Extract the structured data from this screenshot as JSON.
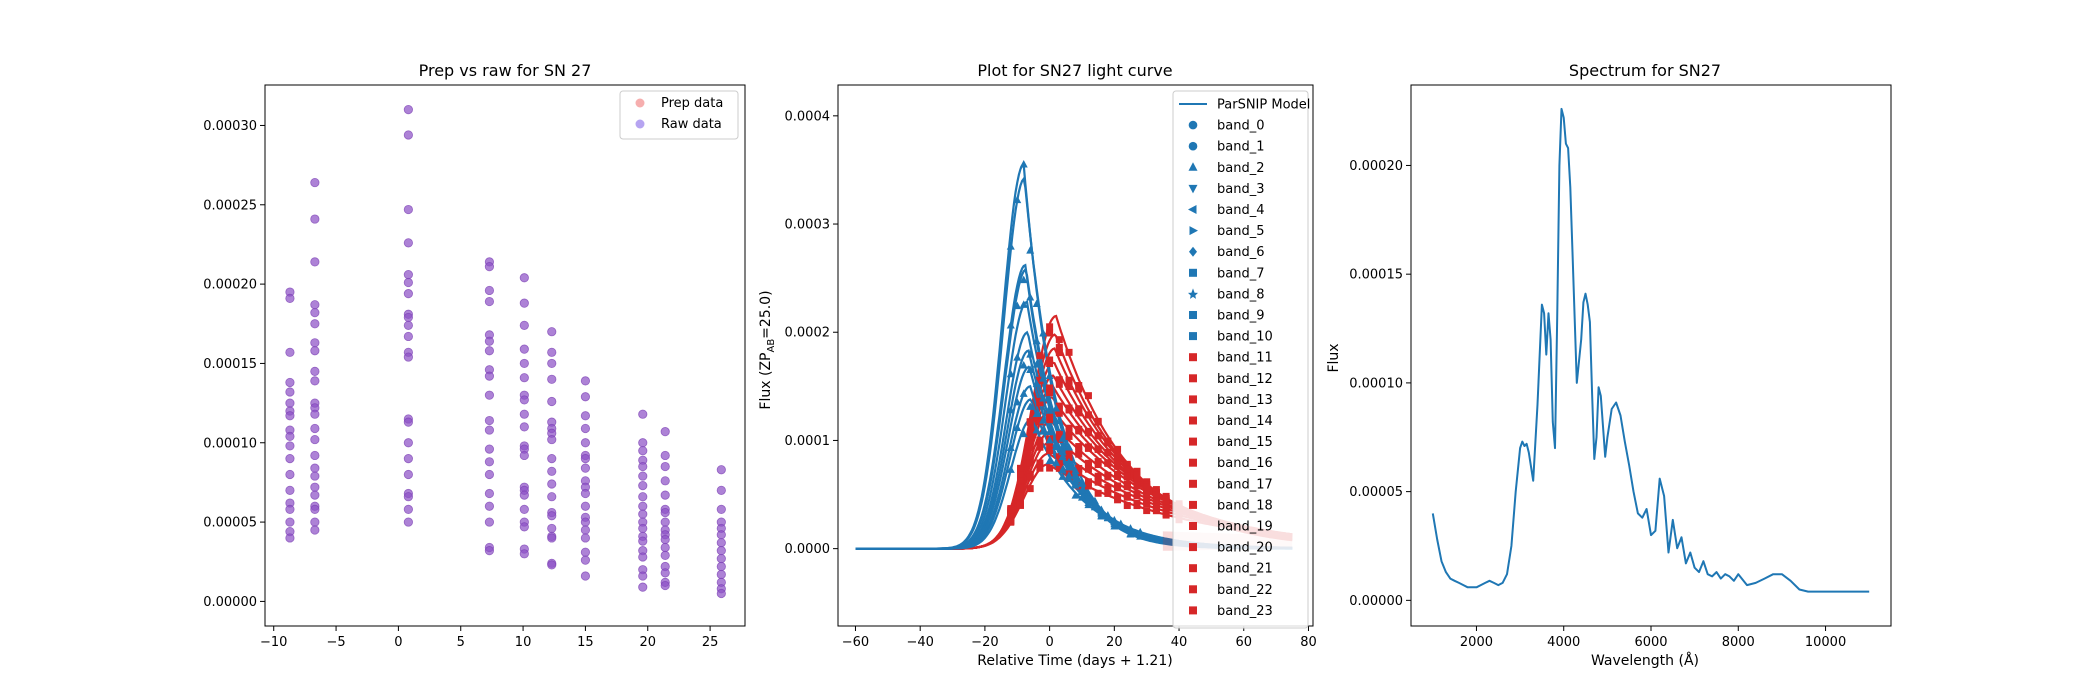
{
  "colors": {
    "red": "#d62728",
    "blue": "#1f77b4",
    "prep": "#f28c8c",
    "raw": "#7a5ae6",
    "overlap": "#8e52c6"
  },
  "chart_data": [
    {
      "type": "scatter",
      "title": "Prep vs raw for SN 27",
      "xlabel": "",
      "ylabel": "",
      "xlim": [
        -10.7,
        27.8
      ],
      "ylim": [
        -1.55e-05,
        0.0003255
      ],
      "xticks": [
        "−10",
        "−5",
        "0",
        "5",
        "10",
        "15",
        "20",
        "25"
      ],
      "xtick_values": [
        -10,
        -5,
        0,
        5,
        10,
        15,
        20,
        25
      ],
      "yticks": [
        "0.00000",
        "0.00005",
        "0.00010",
        "0.00015",
        "0.00020",
        "0.00025",
        "0.00030"
      ],
      "ytick_values": [
        0,
        5e-05,
        0.0001,
        0.00015,
        0.0002,
        0.00025,
        0.0003
      ],
      "legend": [
        "Prep data",
        "Raw data"
      ],
      "legend_position": "top-right",
      "columns": [
        {
          "x": -8.7,
          "y": [
            0.000195,
            0.000191,
            0.000157,
            0.000138,
            0.000132,
            0.000125,
            0.00012,
            0.000117,
            0.000108,
            0.000104,
            9.8e-05,
            9e-05,
            8e-05,
            7e-05,
            6.2e-05,
            5.8e-05,
            5e-05,
            4.4e-05,
            4e-05
          ]
        },
        {
          "x": -6.7,
          "y": [
            0.000264,
            0.000241,
            0.000214,
            0.000187,
            0.000182,
            0.000175,
            0.000163,
            0.000158,
            0.000145,
            0.000139,
            0.000125,
            0.000122,
            0.000118,
            0.000109,
            0.000102,
            9.2e-05,
            8.4e-05,
            7.9e-05,
            7.2e-05,
            6.7e-05,
            6e-05,
            5.8e-05,
            5e-05,
            4.5e-05
          ]
        },
        {
          "x": 0.8,
          "y": [
            0.00031,
            0.000294,
            0.000247,
            0.000226,
            0.000206,
            0.000201,
            0.000194,
            0.000181,
            0.000179,
            0.000174,
            0.000167,
            0.000157,
            0.000154,
            0.000115,
            0.000113,
            0.0001,
            9e-05,
            8e-05,
            6.8e-05,
            6.6e-05,
            5.8e-05,
            5e-05
          ]
        },
        {
          "x": 7.3,
          "y": [
            0.000214,
            0.000211,
            0.000196,
            0.000189,
            0.000168,
            0.000164,
            0.000158,
            0.000146,
            0.000142,
            0.00013,
            0.000114,
            0.000108,
            9.6e-05,
            8.8e-05,
            8e-05,
            6.8e-05,
            6e-05,
            5e-05,
            3.4e-05,
            3.2e-05
          ]
        },
        {
          "x": 10.1,
          "y": [
            0.000204,
            0.000188,
            0.000174,
            0.000159,
            0.00015,
            0.000141,
            0.00013,
            0.000127,
            0.000118,
            0.00011,
            9.8e-05,
            9.6e-05,
            9.2e-05,
            7.2e-05,
            7e-05,
            6.7e-05,
            5.8e-05,
            5e-05,
            4.7e-05,
            3.3e-05,
            3e-05
          ]
        },
        {
          "x": 12.3,
          "y": [
            0.00017,
            0.000157,
            0.00015,
            0.00014,
            0.000126,
            0.000113,
            0.000109,
            0.000106,
            0.000102,
            9e-05,
            8.2e-05,
            7.4e-05,
            6.6e-05,
            5.6e-05,
            5.4e-05,
            4.6e-05,
            4.1e-05,
            4e-05,
            2.4e-05,
            2.3e-05
          ]
        },
        {
          "x": 15.0,
          "y": [
            0.000139,
            0.000129,
            0.000117,
            0.000109,
            0.0001,
            9.2e-05,
            9e-05,
            8.4e-05,
            7.6e-05,
            7.2e-05,
            6.8e-05,
            6e-05,
            5.3e-05,
            5e-05,
            4.5e-05,
            4e-05,
            3.1e-05,
            2.6e-05,
            1.6e-05
          ]
        },
        {
          "x": 19.6,
          "y": [
            0.000118,
            0.0001,
            9.5e-05,
            8.9e-05,
            8.5e-05,
            7.9e-05,
            7.3e-05,
            6.6e-05,
            6e-05,
            5.5e-05,
            5e-05,
            4.6e-05,
            4.1e-05,
            3.8e-05,
            3.2e-05,
            2.8e-05,
            2e-05,
            1.6e-05,
            9e-06
          ]
        },
        {
          "x": 21.4,
          "y": [
            0.000107,
            9.2e-05,
            8.5e-05,
            7.6e-05,
            6.7e-05,
            5.8e-05,
            5.6e-05,
            5e-05,
            4.5e-05,
            4.2e-05,
            3.9e-05,
            3.4e-05,
            2.9e-05,
            2.2e-05,
            1.8e-05,
            1.2e-05,
            1e-05
          ]
        },
        {
          "x": 25.9,
          "y": [
            8.3e-05,
            7e-05,
            5.8e-05,
            5e-05,
            4.6e-05,
            4.2e-05,
            3.7e-05,
            3.2e-05,
            2.7e-05,
            2.2e-05,
            1.7e-05,
            1.2e-05,
            8e-06,
            5e-06
          ]
        }
      ]
    },
    {
      "type": "line",
      "title": "Plot for SN27 light curve",
      "xlabel": "Relative Time (days + 1.21)",
      "ylabel": "Flux (ZP",
      "ylabel_sub": "AB",
      "ylabel_tail": "=25.0)",
      "xlim": [
        -65.4,
        81.4
      ],
      "ylim": [
        -7.15e-05,
        0.0004285
      ],
      "xticks": [
        "−60",
        "−40",
        "−20",
        "0",
        "20",
        "40",
        "60",
        "80"
      ],
      "xtick_values": [
        -60,
        -40,
        -20,
        0,
        20,
        40,
        60,
        80
      ],
      "yticks": [
        "0.0000",
        "0.0001",
        "0.0002",
        "0.0003",
        "0.0004"
      ],
      "ytick_values": [
        0,
        0.0001,
        0.0002,
        0.0003,
        0.0004
      ],
      "x_range": [
        -60,
        75
      ],
      "legend_position": "top-right",
      "legend": [
        {
          "label": "ParSNIP Model",
          "type": "line",
          "color": "#1f77b4"
        },
        {
          "label": "band_0",
          "marker": "hexagon",
          "color": "#1f77b4"
        },
        {
          "label": "band_1",
          "marker": "octagon",
          "color": "#1f77b4"
        },
        {
          "label": "band_2",
          "marker": "triangle-up",
          "color": "#1f77b4"
        },
        {
          "label": "band_3",
          "marker": "tri-down",
          "color": "#1f77b4"
        },
        {
          "label": "band_4",
          "marker": "tri-left",
          "color": "#1f77b4"
        },
        {
          "label": "band_5",
          "marker": "tri-right",
          "color": "#1f77b4"
        },
        {
          "label": "band_6",
          "marker": "diamond",
          "color": "#1f77b4"
        },
        {
          "label": "band_7",
          "marker": "square",
          "color": "#1f77b4"
        },
        {
          "label": "band_8",
          "marker": "star",
          "color": "#1f77b4"
        },
        {
          "label": "band_9",
          "marker": "square",
          "color": "#1f77b4"
        },
        {
          "label": "band_10",
          "marker": "square",
          "color": "#1f77b4"
        },
        {
          "label": "band_11",
          "marker": "square",
          "color": "#d62728"
        },
        {
          "label": "band_12",
          "marker": "square",
          "color": "#d62728"
        },
        {
          "label": "band_13",
          "marker": "square",
          "color": "#d62728"
        },
        {
          "label": "band_14",
          "marker": "square",
          "color": "#d62728"
        },
        {
          "label": "band_15",
          "marker": "square",
          "color": "#d62728"
        },
        {
          "label": "band_16",
          "marker": "square",
          "color": "#d62728"
        },
        {
          "label": "band_17",
          "marker": "square",
          "color": "#d62728"
        },
        {
          "label": "band_18",
          "marker": "square",
          "color": "#d62728"
        },
        {
          "label": "band_19",
          "marker": "square",
          "color": "#d62728"
        },
        {
          "label": "band_20",
          "marker": "square",
          "color": "#d62728"
        },
        {
          "label": "band_21",
          "marker": "square",
          "color": "#d62728"
        },
        {
          "label": "band_22",
          "marker": "square",
          "color": "#d62728"
        },
        {
          "label": "band_23",
          "marker": "square",
          "color": "#d62728"
        }
      ],
      "blue_peaks": [
        0.000355,
        0.000342,
        0.000262,
        0.000258,
        0.000228,
        0.0002,
        0.000183,
        0.000168,
        0.00015,
        0.000138,
        0.00012
      ],
      "red_peaks": [
        0.000215,
        0.000198,
        0.000185,
        0.000172,
        0.00016,
        0.00015,
        0.00014,
        0.00013,
        0.000118,
        0.000108,
        9.8e-05,
        8.8e-05,
        7.8e-05
      ],
      "peak_time": [
        -8,
        2
      ],
      "blue_points": {
        "x": [
          -12,
          -10,
          -8,
          -6,
          -4,
          -2,
          0,
          2,
          4,
          6,
          8,
          10,
          12,
          14,
          16,
          18,
          20,
          22,
          25,
          28
        ],
        "scale": [
          0.45,
          0.6,
          0.8,
          0.95,
          1.0,
          1.0,
          0.98,
          0.92,
          0.85,
          0.75,
          0.65,
          0.55,
          0.45,
          0.36,
          0.28,
          0.2,
          0.14,
          0.1,
          0.06,
          0.03
        ]
      },
      "red_points": {
        "x": [
          -12,
          -9,
          -6,
          -3,
          0,
          3,
          6,
          9,
          12,
          15,
          18,
          21,
          24,
          27,
          30,
          33,
          36,
          40
        ],
        "scale": [
          0.35,
          0.55,
          0.75,
          0.9,
          0.98,
          1.0,
          0.95,
          0.85,
          0.72,
          0.62,
          0.52,
          0.44,
          0.38,
          0.3,
          0.25,
          0.18,
          0.14,
          0.1
        ]
      }
    },
    {
      "type": "line",
      "title": "Spectrum for SN27",
      "xlabel": "Wavelength (Å)",
      "ylabel": "Flux",
      "xlim": [
        500,
        11500
      ],
      "ylim": [
        -1.18e-05,
        0.000237
      ],
      "xticks": [
        "2000",
        "4000",
        "6000",
        "8000",
        "10000"
      ],
      "xtick_values": [
        2000,
        4000,
        6000,
        8000,
        10000
      ],
      "yticks": [
        "0.00000",
        "0.00005",
        "0.00010",
        "0.00015",
        "0.00020"
      ],
      "ytick_values": [
        0,
        5e-05,
        0.0001,
        0.00015,
        0.0002
      ],
      "series": [
        {
          "x": [
            1000,
            1100,
            1200,
            1300,
            1400,
            1500,
            1600,
            1700,
            1800,
            1900,
            2000,
            2100,
            2200,
            2300,
            2400,
            2500,
            2600,
            2700,
            2800,
            2900,
            3000,
            3050,
            3100,
            3150,
            3200,
            3300,
            3400,
            3500,
            3550,
            3600,
            3650,
            3700,
            3750,
            3800,
            3850,
            3900,
            3950,
            4000,
            4050,
            4100,
            4150,
            4200,
            4300,
            4400,
            4450,
            4500,
            4550,
            4600,
            4650,
            4700,
            4750,
            4800,
            4850,
            4900,
            4950,
            5000,
            5100,
            5200,
            5300,
            5400,
            5500,
            5600,
            5700,
            5800,
            5900,
            6000,
            6100,
            6200,
            6300,
            6400,
            6500,
            6600,
            6700,
            6800,
            6900,
            7000,
            7100,
            7200,
            7300,
            7400,
            7500,
            7600,
            7700,
            7800,
            7900,
            8000,
            8200,
            8400,
            8600,
            8800,
            9000,
            9200,
            9400,
            9600,
            9800,
            10000,
            10500,
            11000
          ],
          "y": [
            4e-05,
            2.8e-05,
            1.8e-05,
            1.3e-05,
            1e-05,
            9e-06,
            8e-06,
            7e-06,
            6e-06,
            6e-06,
            6e-06,
            7e-06,
            8e-06,
            9e-06,
            8e-06,
            7e-06,
            8e-06,
            1.2e-05,
            2.5e-05,
            5e-05,
            7e-05,
            7.3e-05,
            7.1e-05,
            7.2e-05,
            6.8e-05,
            5.5e-05,
            9e-05,
            0.000136,
            0.000132,
            0.000113,
            0.000132,
            0.00012,
            8.2e-05,
            7e-05,
            0.00013,
            0.0002,
            0.000226,
            0.000222,
            0.00021,
            0.000208,
            0.00019,
            0.00016,
            0.0001,
            0.00012,
            0.000137,
            0.000141,
            0.000136,
            0.000128,
            9.5e-05,
            6.5e-05,
            7.5e-05,
            9.8e-05,
            9.4e-05,
            8e-05,
            6.6e-05,
            7.5e-05,
            8.8e-05,
            9.1e-05,
            8.5e-05,
            7.3e-05,
            6.2e-05,
            5e-05,
            4e-05,
            3.8e-05,
            4.2e-05,
            3e-05,
            3.2e-05,
            5.6e-05,
            4.8e-05,
            2.2e-05,
            3.7e-05,
            2.4e-05,
            2.9e-05,
            1.7e-05,
            2.2e-05,
            1.5e-05,
            1.3e-05,
            1.8e-05,
            1.2e-05,
            1.1e-05,
            1.3e-05,
            1e-05,
            1.2e-05,
            1.1e-05,
            9e-06,
            1.2e-05,
            7e-06,
            8e-06,
            1e-05,
            1.2e-05,
            1.2e-05,
            9e-06,
            5e-06,
            4e-06,
            4e-06,
            4e-06,
            4e-06,
            4e-06
          ]
        }
      ]
    }
  ]
}
